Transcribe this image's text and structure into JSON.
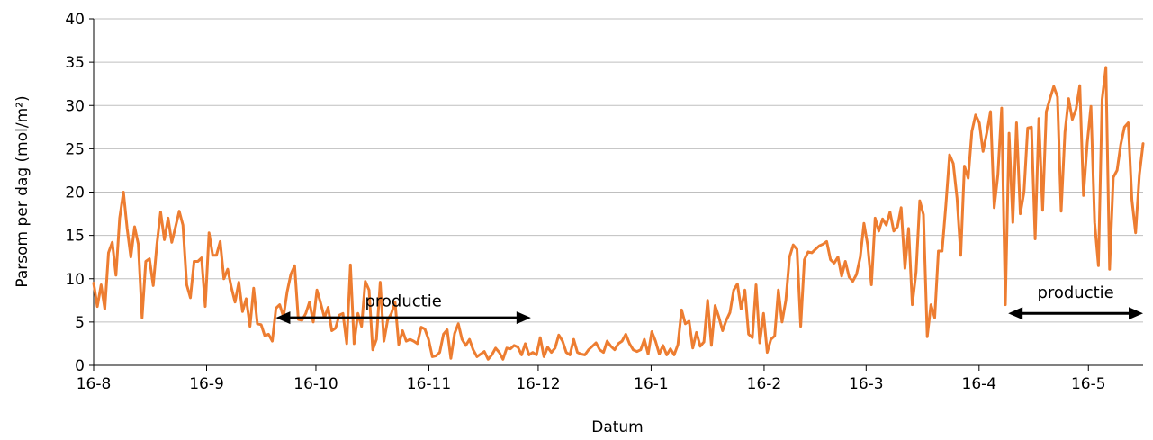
{
  "chart_data": {
    "type": "line",
    "title": "",
    "xlabel": "Datum",
    "ylabel": "Parsom per dag (mol/m²)",
    "ylim": [
      0,
      40
    ],
    "yticks": [
      0,
      5,
      10,
      15,
      20,
      25,
      30,
      35,
      40
    ],
    "grid": true,
    "line_color": "#ed7d31",
    "x_start_date": "2016-08-16",
    "x_end_date": "2017-05-31",
    "xticks": [
      {
        "label": "16-8",
        "date": "2016-08-16"
      },
      {
        "label": "16-9",
        "date": "2016-09-16"
      },
      {
        "label": "16-10",
        "date": "2016-10-16"
      },
      {
        "label": "16-11",
        "date": "2016-11-16"
      },
      {
        "label": "16-12",
        "date": "2016-12-16"
      },
      {
        "label": "16-1",
        "date": "2017-01-16"
      },
      {
        "label": "16-2",
        "date": "2017-02-16"
      },
      {
        "label": "16-3",
        "date": "2017-03-16"
      },
      {
        "label": "16-4",
        "date": "2017-04-16"
      },
      {
        "label": "16-5",
        "date": "2017-05-16"
      }
    ],
    "series": [
      {
        "values": [
          9.5,
          6.8,
          9.3,
          6.5,
          13,
          14.2,
          10.4,
          17,
          20,
          15.8,
          12.5,
          16,
          14,
          5.5,
          12,
          12.3,
          9.2,
          14,
          17.7,
          14.5,
          17,
          14.2,
          16,
          17.8,
          16.2,
          9.3,
          7.8,
          12,
          12,
          12.4,
          6.8,
          15.3,
          12.7,
          12.7,
          14.3,
          10,
          11.1,
          9,
          7.3,
          9.6,
          6.2,
          7.7,
          4.5,
          8.9,
          4.8,
          4.7,
          3.4,
          3.6,
          2.8,
          6.6,
          7,
          5.6,
          8.5,
          10.5,
          11.5,
          5.3,
          5.2,
          6,
          7.3,
          5,
          8.7,
          7.2,
          5.5,
          6.7,
          4,
          4.3,
          5.8,
          6,
          2.5,
          11.6,
          2.5,
          6,
          4.5,
          9.7,
          8.7,
          1.8,
          3,
          9.6,
          2.8,
          5.2,
          6,
          7.3,
          2.4,
          4,
          2.8,
          3,
          2.8,
          2.5,
          4.4,
          4.2,
          3,
          1,
          1.1,
          1.5,
          3.6,
          4.1,
          0.8,
          3.7,
          4.8,
          3,
          2.3,
          3,
          1.8,
          1,
          1.3,
          1.6,
          0.7,
          1.2,
          2,
          1.5,
          0.7,
          2,
          1.9,
          2.3,
          2.1,
          1.2,
          2.5,
          1.2,
          1.5,
          1.2,
          3.2,
          1,
          2.1,
          1.5,
          2,
          3.5,
          2.8,
          1.5,
          1.2,
          3,
          1.5,
          1.3,
          1.2,
          1.8,
          2.2,
          2.6,
          1.8,
          1.5,
          2.8,
          2.2,
          1.8,
          2.5,
          2.8,
          3.6,
          2.5,
          1.8,
          1.6,
          1.8,
          3,
          1.3,
          3.9,
          2.8,
          1.3,
          2.3,
          1.2,
          1.9,
          1.2,
          2.4,
          6.4,
          4.8,
          5.1,
          2,
          3.8,
          2.2,
          2.7,
          7.5,
          2.3,
          6.9,
          5.6,
          4,
          5.2,
          6.1,
          8.7,
          9.4,
          6.5,
          8.7,
          3.6,
          3.2,
          9.3,
          2.6,
          6,
          1.5,
          3,
          3.4,
          8.7,
          5,
          7.5,
          12.5,
          13.9,
          13.4,
          4.5,
          12.2,
          13.1,
          13,
          13.4,
          13.8,
          14,
          14.3,
          12.2,
          11.8,
          12.5,
          10.3,
          12,
          10.2,
          9.7,
          10.5,
          12.5,
          16.4,
          13.9,
          9.3,
          17,
          15.5,
          16.9,
          16.2,
          17.7,
          15.5,
          16,
          18.2,
          11.2,
          15.8,
          7,
          10.8,
          19,
          17.4,
          3.3,
          7,
          5.5,
          13.2,
          13.2,
          18.5,
          24.3,
          23.3,
          19.3,
          12.7,
          23,
          21.6,
          27,
          28.9,
          28,
          24.7,
          26.8,
          29.3,
          18.2,
          22,
          29.7,
          7,
          26.8,
          16.5,
          28,
          17.5,
          20,
          27.4,
          27.5,
          14.6,
          28.5,
          17.9,
          29.3,
          30.8,
          32.2,
          31,
          17.8,
          26.9,
          30.8,
          28.4,
          29.6,
          32.3,
          19.6,
          25.7,
          29.9,
          16.5,
          11.5,
          30.7,
          34.4,
          11.1,
          21.7,
          22.5,
          25.5,
          27.5,
          28,
          19.1,
          15.3,
          22,
          25.6
        ]
      }
    ],
    "annotations": [
      {
        "text": "productie",
        "arrow_start_date": "2016-10-05",
        "arrow_end_date": "2016-12-14",
        "arrow_y": 5.5,
        "label_y": 6.8
      },
      {
        "text": "productie",
        "arrow_start_date": "2017-04-24",
        "arrow_end_date": "2017-05-31",
        "arrow_y": 6.0,
        "label_y": 7.8
      }
    ]
  }
}
